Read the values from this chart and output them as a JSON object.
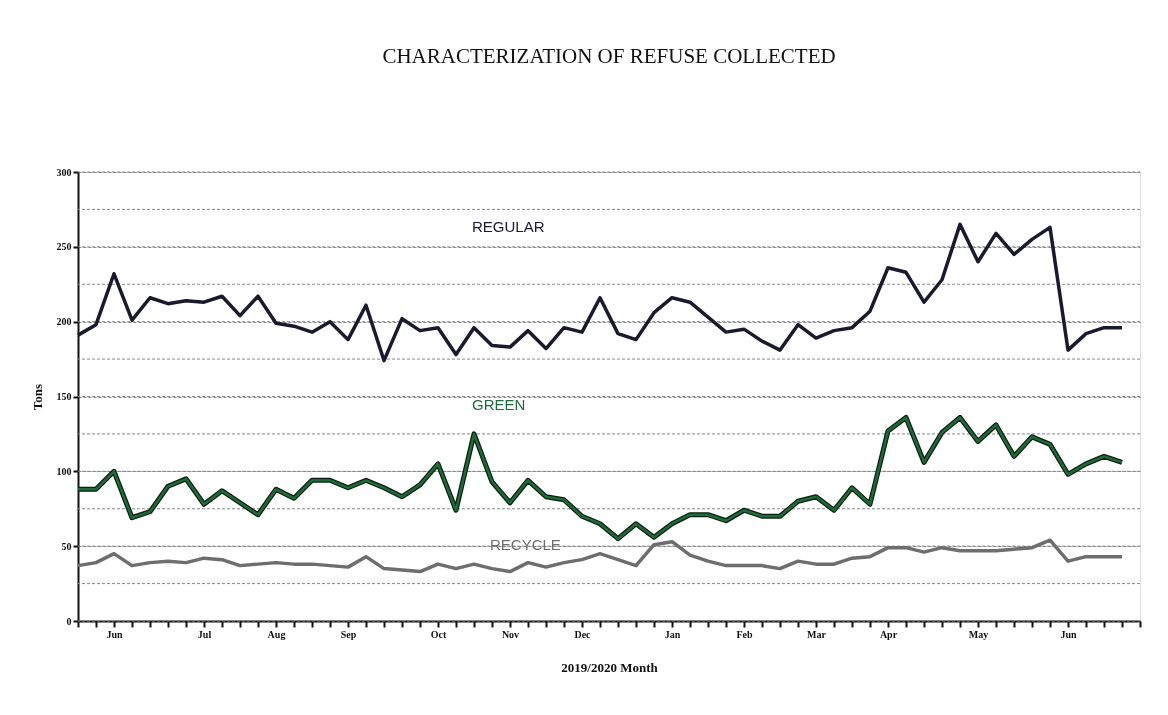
{
  "chart_data": {
    "type": "line",
    "title": "CHARACTERIZATION OF REFUSE COLLECTED",
    "xlabel": "2019/2020 Month",
    "ylabel": "Tons",
    "categories": [
      null,
      null,
      "Jun",
      null,
      null,
      null,
      null,
      "Jul",
      null,
      null,
      null,
      "Aug",
      null,
      null,
      null,
      "Sep",
      null,
      null,
      null,
      null,
      "Oct",
      null,
      null,
      null,
      "Nov",
      null,
      null,
      null,
      "Dec",
      null,
      null,
      null,
      null,
      "Jan",
      null,
      null,
      null,
      "Feb",
      null,
      null,
      null,
      "Mar",
      null,
      null,
      null,
      "Apr",
      null,
      null,
      null,
      null,
      "May",
      null,
      null,
      null,
      null,
      "Jun",
      null,
      null,
      null,
      null
    ],
    "series": [
      {
        "name": "REGULAR",
        "color": "#1a1a2e",
        "values": [
          191,
          198,
          232,
          201,
          216,
          212,
          214,
          213,
          217,
          204,
          217,
          199,
          197,
          193,
          200,
          188,
          211,
          174,
          202,
          194,
          196,
          178,
          196,
          184,
          183,
          194,
          182,
          196,
          193,
          216,
          192,
          188,
          206,
          216,
          213,
          203,
          193,
          195,
          187,
          181,
          198,
          189,
          194,
          196,
          207,
          236,
          233,
          213,
          228,
          265,
          240,
          259,
          245,
          255,
          263,
          181,
          192,
          196,
          196,
          null
        ]
      },
      {
        "name": "GREEN",
        "color": "#1e6b3a",
        "values": [
          88,
          88,
          100,
          69,
          73,
          90,
          95,
          78,
          87,
          79,
          71,
          88,
          82,
          94,
          94,
          89,
          94,
          89,
          83,
          91,
          105,
          74,
          125,
          93,
          79,
          94,
          83,
          81,
          70,
          65,
          55,
          65,
          56,
          65,
          71,
          71,
          67,
          74,
          70,
          70,
          80,
          83,
          74,
          89,
          78,
          127,
          136,
          106,
          126,
          136,
          120,
          131,
          110,
          123,
          118,
          98,
          105,
          110,
          106,
          null
        ]
      },
      {
        "name": "RECYCLE",
        "color": "#6e6e6e",
        "values": [
          37,
          39,
          45,
          37,
          39,
          40,
          39,
          42,
          41,
          37,
          38,
          39,
          38,
          38,
          37,
          36,
          43,
          35,
          34,
          33,
          38,
          35,
          38,
          35,
          33,
          39,
          36,
          39,
          41,
          45,
          41,
          37,
          51,
          53,
          44,
          40,
          37,
          37,
          37,
          35,
          40,
          38,
          38,
          42,
          43,
          49,
          49,
          46,
          49,
          47,
          47,
          47,
          48,
          49,
          54,
          40,
          43,
          43,
          43,
          null
        ]
      }
    ],
    "ylim": [
      0,
      300
    ],
    "yticks": [
      0,
      {
        "value": 25,
        "label": null
      },
      50,
      {
        "value": 75,
        "label": null
      },
      100,
      {
        "value": 125,
        "label": null
      },
      150,
      {
        "value": 175,
        "label": null
      },
      200,
      {
        "value": 225,
        "label": null
      },
      250,
      {
        "value": 275,
        "label": null
      },
      300
    ],
    "grid": "y",
    "marker": "none",
    "line_style": "solid"
  }
}
